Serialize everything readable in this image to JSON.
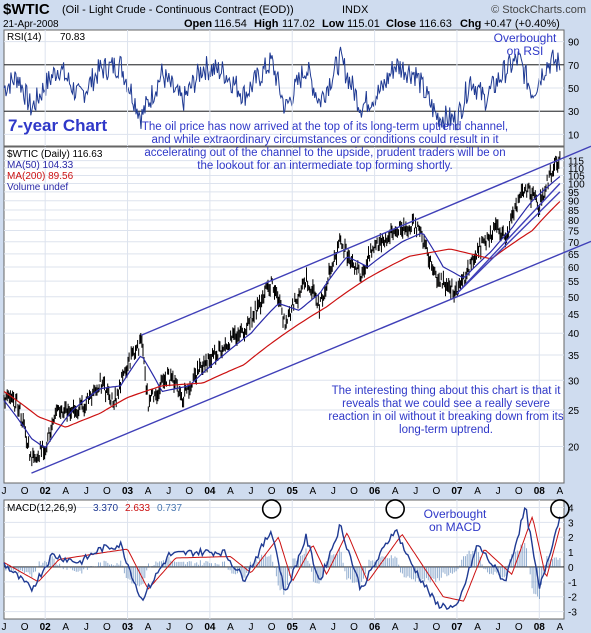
{
  "header": {
    "symbol": "$WTIC",
    "name": "(Oil - Light Crude - Continuous Contract (EOD))",
    "exchange": "INDX",
    "copyright": "© StockCharts.com",
    "date": "21-Apr-2008",
    "ohlc": {
      "open_label": "Open",
      "open": "116.54",
      "high_label": "High",
      "high": "117.02",
      "low_label": "Low",
      "low": "115.01",
      "close_label": "Close",
      "close": "116.63",
      "chg_label": "Chg",
      "chg": "+0.47 (+0.40%)"
    }
  },
  "annotations": {
    "seven_year": "7-year Chart",
    "overbought_rsi": "Overbought on RSI",
    "overbought_macd": "Overbought on MACD",
    "top_note": "The oil price has now arrived at the top of its long-term uptrend channel, and while extraordinary circumstances or conditions could result in it accelerating out of the channel to the upside, prudent traders will be on the lookout for an intermediate top forming shortly.",
    "bottom_note": "The interesting thing about this chart is that it reveals that we could see a really severe reaction in oil without it breaking down from its long-term uptrend."
  },
  "colors": {
    "background": "#cfdcef",
    "panel": "#ffffff",
    "price": "#000000",
    "up_bar": "#000000",
    "ma50": "#2a2aa8",
    "ma200": "#cc1111",
    "channel": "#4040b8",
    "rsi": "#1f3a93",
    "macd": "#1f3a93",
    "signal": "#cc1111",
    "histogram": "#4a78b0",
    "annotation": "#2f38c8",
    "circle": "#000000"
  },
  "chart_data": [
    {
      "type": "line",
      "panel": "RSI",
      "title": "RSI(14)",
      "current_value": "70.83",
      "levels": [
        70,
        30
      ],
      "ylim": [
        0,
        100
      ],
      "y_ticks": [
        10,
        30,
        50,
        70,
        90
      ],
      "x_range": [
        "2001-07",
        "2008-04"
      ],
      "approx_series": [
        {
          "x": "2001-07",
          "y": 50
        },
        {
          "x": "2001-09",
          "y": 60
        },
        {
          "x": "2001-11",
          "y": 32
        },
        {
          "x": "2002-01",
          "y": 52
        },
        {
          "x": "2002-03",
          "y": 68
        },
        {
          "x": "2002-06",
          "y": 42
        },
        {
          "x": "2002-09",
          "y": 66
        },
        {
          "x": "2002-12",
          "y": 70
        },
        {
          "x": "2003-03",
          "y": 25
        },
        {
          "x": "2003-06",
          "y": 62
        },
        {
          "x": "2003-09",
          "y": 38
        },
        {
          "x": "2003-12",
          "y": 68
        },
        {
          "x": "2004-03",
          "y": 64
        },
        {
          "x": "2004-06",
          "y": 44
        },
        {
          "x": "2004-10",
          "y": 73
        },
        {
          "x": "2004-12",
          "y": 32
        },
        {
          "x": "2005-03",
          "y": 68
        },
        {
          "x": "2005-05",
          "y": 38
        },
        {
          "x": "2005-08",
          "y": 75
        },
        {
          "x": "2005-11",
          "y": 34
        },
        {
          "x": "2006-02",
          "y": 48
        },
        {
          "x": "2006-04",
          "y": 70
        },
        {
          "x": "2006-07",
          "y": 62
        },
        {
          "x": "2006-10",
          "y": 26
        },
        {
          "x": "2007-01",
          "y": 22
        },
        {
          "x": "2007-03",
          "y": 58
        },
        {
          "x": "2007-05",
          "y": 40
        },
        {
          "x": "2007-08",
          "y": 65
        },
        {
          "x": "2007-10",
          "y": 75
        },
        {
          "x": "2007-12",
          "y": 46
        },
        {
          "x": "2008-02",
          "y": 70
        },
        {
          "x": "2008-03",
          "y": 73
        },
        {
          "x": "2008-04",
          "y": 70.83
        }
      ]
    },
    {
      "type": "line",
      "panel": "Price",
      "title": "$WTIC (Daily) 116.63",
      "series": [
        {
          "name": "$WTIC (Daily) 116.63",
          "color": "#000000",
          "points": [
            {
              "x": "2001-07",
              "y": 27
            },
            {
              "x": "2001-09",
              "y": 26
            },
            {
              "x": "2001-11",
              "y": 18.5
            },
            {
              "x": "2002-01",
              "y": 20
            },
            {
              "x": "2002-03",
              "y": 25
            },
            {
              "x": "2002-06",
              "y": 25
            },
            {
              "x": "2002-09",
              "y": 29.5
            },
            {
              "x": "2002-11",
              "y": 26
            },
            {
              "x": "2003-01",
              "y": 33
            },
            {
              "x": "2003-03",
              "y": 38
            },
            {
              "x": "2003-04",
              "y": 26
            },
            {
              "x": "2003-07",
              "y": 31
            },
            {
              "x": "2003-09",
              "y": 27
            },
            {
              "x": "2003-12",
              "y": 33
            },
            {
              "x": "2004-03",
              "y": 37
            },
            {
              "x": "2004-06",
              "y": 41
            },
            {
              "x": "2004-08",
              "y": 47
            },
            {
              "x": "2004-10",
              "y": 55
            },
            {
              "x": "2004-12",
              "y": 42
            },
            {
              "x": "2005-03",
              "y": 56
            },
            {
              "x": "2005-05",
              "y": 47
            },
            {
              "x": "2005-08",
              "y": 70
            },
            {
              "x": "2005-11",
              "y": 57
            },
            {
              "x": "2006-01",
              "y": 68
            },
            {
              "x": "2006-04",
              "y": 75
            },
            {
              "x": "2006-07",
              "y": 78
            },
            {
              "x": "2006-10",
              "y": 57
            },
            {
              "x": "2007-01",
              "y": 51
            },
            {
              "x": "2007-04",
              "y": 66
            },
            {
              "x": "2007-07",
              "y": 78
            },
            {
              "x": "2007-08",
              "y": 71
            },
            {
              "x": "2007-11",
              "y": 98
            },
            {
              "x": "2008-01",
              "y": 87
            },
            {
              "x": "2008-03",
              "y": 110
            },
            {
              "x": "2008-04",
              "y": 116.63
            }
          ]
        },
        {
          "name": "MA(50) 104.33",
          "color": "#2a2aa8",
          "points": [
            {
              "x": "2001-07",
              "y": 26.5
            },
            {
              "x": "2001-11",
              "y": 21
            },
            {
              "x": "2002-01",
              "y": 19.8
            },
            {
              "x": "2002-05",
              "y": 25
            },
            {
              "x": "2002-09",
              "y": 28.5
            },
            {
              "x": "2002-12",
              "y": 29
            },
            {
              "x": "2003-03",
              "y": 35
            },
            {
              "x": "2003-06",
              "y": 28
            },
            {
              "x": "2003-10",
              "y": 29
            },
            {
              "x": "2004-03",
              "y": 35
            },
            {
              "x": "2004-07",
              "y": 40
            },
            {
              "x": "2004-11",
              "y": 48
            },
            {
              "x": "2005-02",
              "y": 46
            },
            {
              "x": "2005-05",
              "y": 51
            },
            {
              "x": "2005-09",
              "y": 64
            },
            {
              "x": "2005-12",
              "y": 60
            },
            {
              "x": "2006-05",
              "y": 70
            },
            {
              "x": "2006-08",
              "y": 74
            },
            {
              "x": "2006-11",
              "y": 60
            },
            {
              "x": "2007-02",
              "y": 56
            },
            {
              "x": "2007-06",
              "y": 66
            },
            {
              "x": "2007-09",
              "y": 76
            },
            {
              "x": "2007-12",
              "y": 90
            },
            {
              "x": "2008-04",
              "y": 104.33
            }
          ]
        },
        {
          "name": "MA(200) 89.56",
          "color": "#cc1111",
          "points": [
            {
              "x": "2001-07",
              "y": 28
            },
            {
              "x": "2001-12",
              "y": 24
            },
            {
              "x": "2002-04",
              "y": 22.5
            },
            {
              "x": "2002-09",
              "y": 24.5
            },
            {
              "x": "2003-01",
              "y": 27
            },
            {
              "x": "2003-06",
              "y": 29
            },
            {
              "x": "2003-12",
              "y": 29.5
            },
            {
              "x": "2004-06",
              "y": 33
            },
            {
              "x": "2004-12",
              "y": 40
            },
            {
              "x": "2005-06",
              "y": 47
            },
            {
              "x": "2005-12",
              "y": 56
            },
            {
              "x": "2006-06",
              "y": 64
            },
            {
              "x": "2006-12",
              "y": 67
            },
            {
              "x": "2007-06",
              "y": 63
            },
            {
              "x": "2007-12",
              "y": 75
            },
            {
              "x": "2008-04",
              "y": 89.56
            }
          ]
        }
      ],
      "legend": [
        {
          "label": "$WTIC (Daily) 116.63",
          "color": "#000000"
        },
        {
          "label": "MA(50) 104.33",
          "color": "#2a2aa8"
        },
        {
          "label": "MA(200) 89.56",
          "color": "#cc1111"
        },
        {
          "label": "Volume undef",
          "color": "#2a2aa8"
        }
      ],
      "y_scale": "log",
      "ylim": [
        16,
        125
      ],
      "y_ticks": [
        20,
        25,
        30,
        35,
        40,
        45,
        50,
        55,
        60,
        65,
        70,
        75,
        80,
        85,
        90,
        95,
        100,
        105,
        110,
        115
      ],
      "channel_lines": [
        {
          "from": {
            "x": "2003-03",
            "y": 39.5
          },
          "to": {
            "x": "2008-05",
            "y": 118
          }
        },
        {
          "from": {
            "x": "2001-11",
            "y": 17
          },
          "to": {
            "x": "2008-05",
            "y": 66
          }
        },
        {
          "from": {
            "x": "2007-01",
            "y": 51
          },
          "to": {
            "x": "2008-04",
            "y": 100
          }
        },
        {
          "from": {
            "x": "2007-01",
            "y": 51
          },
          "to": {
            "x": "2008-04",
            "y": 95
          }
        }
      ]
    },
    {
      "type": "line",
      "panel": "MACD",
      "title": "MACD(12,26,9)",
      "values_text": [
        "3.370",
        "2.633",
        "0.737"
      ],
      "ylim": [
        -3.5,
        4.5
      ],
      "y_ticks": [
        -3,
        -2,
        -1,
        0,
        1,
        2,
        3,
        4
      ],
      "series": [
        {
          "name": "MACD",
          "color": "#1f3a93",
          "points": [
            {
              "x": "2001-07",
              "y": 0.2
            },
            {
              "x": "2001-11",
              "y": -1.5
            },
            {
              "x": "2002-02",
              "y": 0.8
            },
            {
              "x": "2002-06",
              "y": 0.3
            },
            {
              "x": "2002-09",
              "y": 1.2
            },
            {
              "x": "2002-12",
              "y": 1.5
            },
            {
              "x": "2003-03",
              "y": -2.2
            },
            {
              "x": "2003-07",
              "y": 0.8
            },
            {
              "x": "2003-11",
              "y": 1.0
            },
            {
              "x": "2004-03",
              "y": 1.0
            },
            {
              "x": "2004-06",
              "y": -0.8
            },
            {
              "x": "2004-10",
              "y": 2.5
            },
            {
              "x": "2004-12",
              "y": -1.8
            },
            {
              "x": "2005-03",
              "y": 2.0
            },
            {
              "x": "2005-05",
              "y": -1.0
            },
            {
              "x": "2005-08",
              "y": 2.8
            },
            {
              "x": "2005-11",
              "y": -1.5
            },
            {
              "x": "2006-04",
              "y": 2.6
            },
            {
              "x": "2006-06",
              "y": 0.5
            },
            {
              "x": "2006-10",
              "y": -2.5
            },
            {
              "x": "2007-01",
              "y": -2.8
            },
            {
              "x": "2007-04",
              "y": 1.5
            },
            {
              "x": "2007-08",
              "y": -1.0
            },
            {
              "x": "2007-11",
              "y": 4.0
            },
            {
              "x": "2008-01",
              "y": -1.5
            },
            {
              "x": "2008-04",
              "y": 3.37
            }
          ]
        },
        {
          "name": "Signal",
          "color": "#cc1111",
          "points": [
            {
              "x": "2001-07",
              "y": 0.3
            },
            {
              "x": "2001-12",
              "y": -1.0
            },
            {
              "x": "2002-03",
              "y": 0.5
            },
            {
              "x": "2002-10",
              "y": 1.0
            },
            {
              "x": "2003-01",
              "y": 1.2
            },
            {
              "x": "2003-04",
              "y": -1.5
            },
            {
              "x": "2003-08",
              "y": 0.6
            },
            {
              "x": "2004-04",
              "y": 0.7
            },
            {
              "x": "2004-07",
              "y": -0.4
            },
            {
              "x": "2004-11",
              "y": 2.0
            },
            {
              "x": "2005-01",
              "y": -1.0
            },
            {
              "x": "2005-04",
              "y": 1.5
            },
            {
              "x": "2005-06",
              "y": -0.5
            },
            {
              "x": "2005-09",
              "y": 2.3
            },
            {
              "x": "2005-12",
              "y": -1.0
            },
            {
              "x": "2006-05",
              "y": 2.2
            },
            {
              "x": "2006-11",
              "y": -2.0
            },
            {
              "x": "2007-02",
              "y": -2.3
            },
            {
              "x": "2007-05",
              "y": 1.2
            },
            {
              "x": "2007-09",
              "y": -0.5
            },
            {
              "x": "2007-12",
              "y": 3.4
            },
            {
              "x": "2008-02",
              "y": -0.8
            },
            {
              "x": "2008-04",
              "y": 2.633
            }
          ]
        }
      ],
      "histogram_last": 0.737,
      "circles_at": [
        "2004-10",
        "2006-04",
        "2008-04"
      ]
    }
  ],
  "x_axis": {
    "labels": [
      "J",
      "O",
      "02",
      "A",
      "J",
      "O",
      "03",
      "A",
      "J",
      "O",
      "04",
      "A",
      "J",
      "O",
      "05",
      "A",
      "J",
      "O",
      "06",
      "A",
      "J",
      "O",
      "07",
      "A",
      "J",
      "O",
      "08",
      "A"
    ],
    "bold": [
      "02",
      "03",
      "04",
      "05",
      "06",
      "07",
      "08"
    ]
  }
}
